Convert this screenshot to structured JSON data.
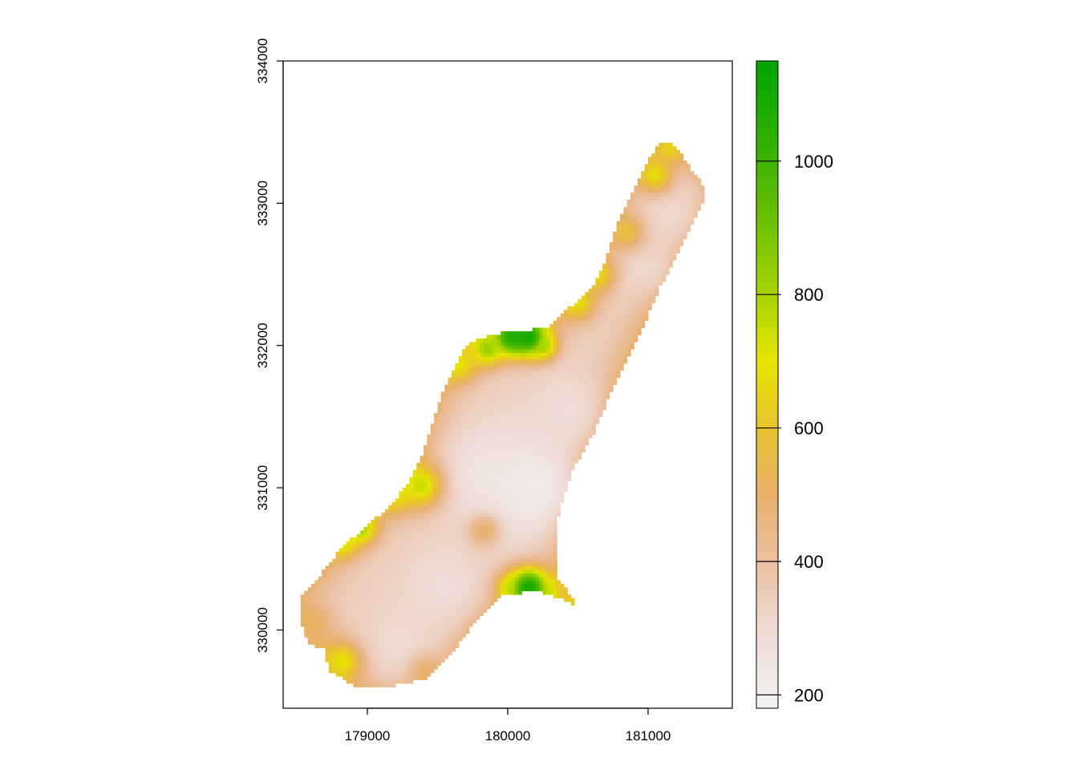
{
  "chart_data": {
    "type": "heatmap",
    "title": "",
    "xlabel": "",
    "ylabel": "",
    "xlim": [
      178400,
      181600
    ],
    "ylim": [
      329450,
      334000
    ],
    "x_ticks": [
      179000,
      180000,
      181000
    ],
    "y_ticks": [
      330000,
      331000,
      332000,
      333000,
      334000
    ],
    "grid": false,
    "legend": {
      "placement": "right",
      "range": [
        180,
        1150
      ],
      "ticks": [
        200,
        400,
        600,
        800,
        1000
      ],
      "colors": [
        {
          "value": 180,
          "color": "#f2f2f2"
        },
        {
          "value": 300,
          "color": "#eed9d2"
        },
        {
          "value": 400,
          "color": "#ebbfa0"
        },
        {
          "value": 500,
          "color": "#e8b06a"
        },
        {
          "value": 600,
          "color": "#e8c32e"
        },
        {
          "value": 700,
          "color": "#e6e300"
        },
        {
          "value": 800,
          "color": "#a7d400"
        },
        {
          "value": 1000,
          "color": "#3db300"
        },
        {
          "value": 1150,
          "color": "#00a600"
        }
      ]
    },
    "region": {
      "outline": [
        [
          178700,
          329870
        ],
        [
          178720,
          329720
        ],
        [
          178900,
          329610
        ],
        [
          179150,
          329600
        ],
        [
          179420,
          329660
        ],
        [
          179600,
          329830
        ],
        [
          179760,
          330050
        ],
        [
          179960,
          330240
        ],
        [
          180200,
          330280
        ],
        [
          180360,
          330230
        ],
        [
          180500,
          330170
        ],
        [
          180350,
          330380
        ],
        [
          180350,
          330580
        ],
        [
          180360,
          330800
        ],
        [
          180450,
          331100
        ],
        [
          180620,
          331400
        ],
        [
          180780,
          331770
        ],
        [
          180950,
          332100
        ],
        [
          181080,
          332400
        ],
        [
          181240,
          332700
        ],
        [
          181390,
          333000
        ],
        [
          181400,
          333120
        ],
        [
          181300,
          333250
        ],
        [
          181200,
          333400
        ],
        [
          181100,
          333440
        ],
        [
          181000,
          333300
        ],
        [
          180900,
          333100
        ],
        [
          180800,
          332900
        ],
        [
          180700,
          332600
        ],
        [
          180600,
          332400
        ],
        [
          180420,
          332250
        ],
        [
          180280,
          332130
        ],
        [
          180080,
          332100
        ],
        [
          179880,
          332080
        ],
        [
          179700,
          332000
        ],
        [
          179550,
          331700
        ],
        [
          179470,
          331470
        ],
        [
          179400,
          331250
        ],
        [
          179300,
          331050
        ],
        [
          179180,
          330890
        ],
        [
          178980,
          330720
        ],
        [
          178800,
          330560
        ],
        [
          178660,
          330380
        ],
        [
          178530,
          330250
        ],
        [
          178530,
          330050
        ],
        [
          178580,
          329900
        ]
      ],
      "peaks": [
        {
          "x": 180020,
          "y": 332060,
          "value": 1050,
          "radius": 90
        },
        {
          "x": 180150,
          "y": 332060,
          "value": 1100,
          "radius": 90
        },
        {
          "x": 180250,
          "y": 332000,
          "value": 800,
          "radius": 70
        },
        {
          "x": 179850,
          "y": 331980,
          "value": 820,
          "radius": 90
        },
        {
          "x": 179650,
          "y": 331870,
          "value": 700,
          "radius": 90
        },
        {
          "x": 180500,
          "y": 332300,
          "value": 680,
          "radius": 80
        },
        {
          "x": 180650,
          "y": 332500,
          "value": 650,
          "radius": 80
        },
        {
          "x": 181050,
          "y": 333200,
          "value": 680,
          "radius": 90
        },
        {
          "x": 181150,
          "y": 333380,
          "value": 650,
          "radius": 70
        },
        {
          "x": 180850,
          "y": 332800,
          "value": 580,
          "radius": 90
        },
        {
          "x": 180150,
          "y": 330300,
          "value": 1100,
          "radius": 100
        },
        {
          "x": 180030,
          "y": 330300,
          "value": 760,
          "radius": 70
        },
        {
          "x": 180280,
          "y": 330270,
          "value": 750,
          "radius": 70
        },
        {
          "x": 180450,
          "y": 330210,
          "value": 620,
          "radius": 60
        },
        {
          "x": 179380,
          "y": 331020,
          "value": 750,
          "radius": 110
        },
        {
          "x": 179200,
          "y": 330970,
          "value": 700,
          "radius": 90
        },
        {
          "x": 178950,
          "y": 330720,
          "value": 820,
          "radius": 80
        },
        {
          "x": 178820,
          "y": 330620,
          "value": 720,
          "radius": 80
        },
        {
          "x": 178820,
          "y": 329780,
          "value": 700,
          "radius": 100
        },
        {
          "x": 178600,
          "y": 330050,
          "value": 520,
          "radius": 110
        },
        {
          "x": 179420,
          "y": 329700,
          "value": 500,
          "radius": 90
        },
        {
          "x": 179830,
          "y": 330700,
          "value": 500,
          "radius": 80
        }
      ],
      "lows": [
        {
          "x": 180200,
          "y": 331000,
          "value": 200,
          "radius": 260
        },
        {
          "x": 179850,
          "y": 331100,
          "value": 240,
          "radius": 220
        },
        {
          "x": 179550,
          "y": 330300,
          "value": 280,
          "radius": 200
        },
        {
          "x": 179250,
          "y": 329850,
          "value": 290,
          "radius": 200
        },
        {
          "x": 180450,
          "y": 331550,
          "value": 280,
          "radius": 180
        },
        {
          "x": 181150,
          "y": 332950,
          "value": 300,
          "radius": 200
        },
        {
          "x": 180980,
          "y": 332550,
          "value": 300,
          "radius": 160
        }
      ]
    }
  }
}
